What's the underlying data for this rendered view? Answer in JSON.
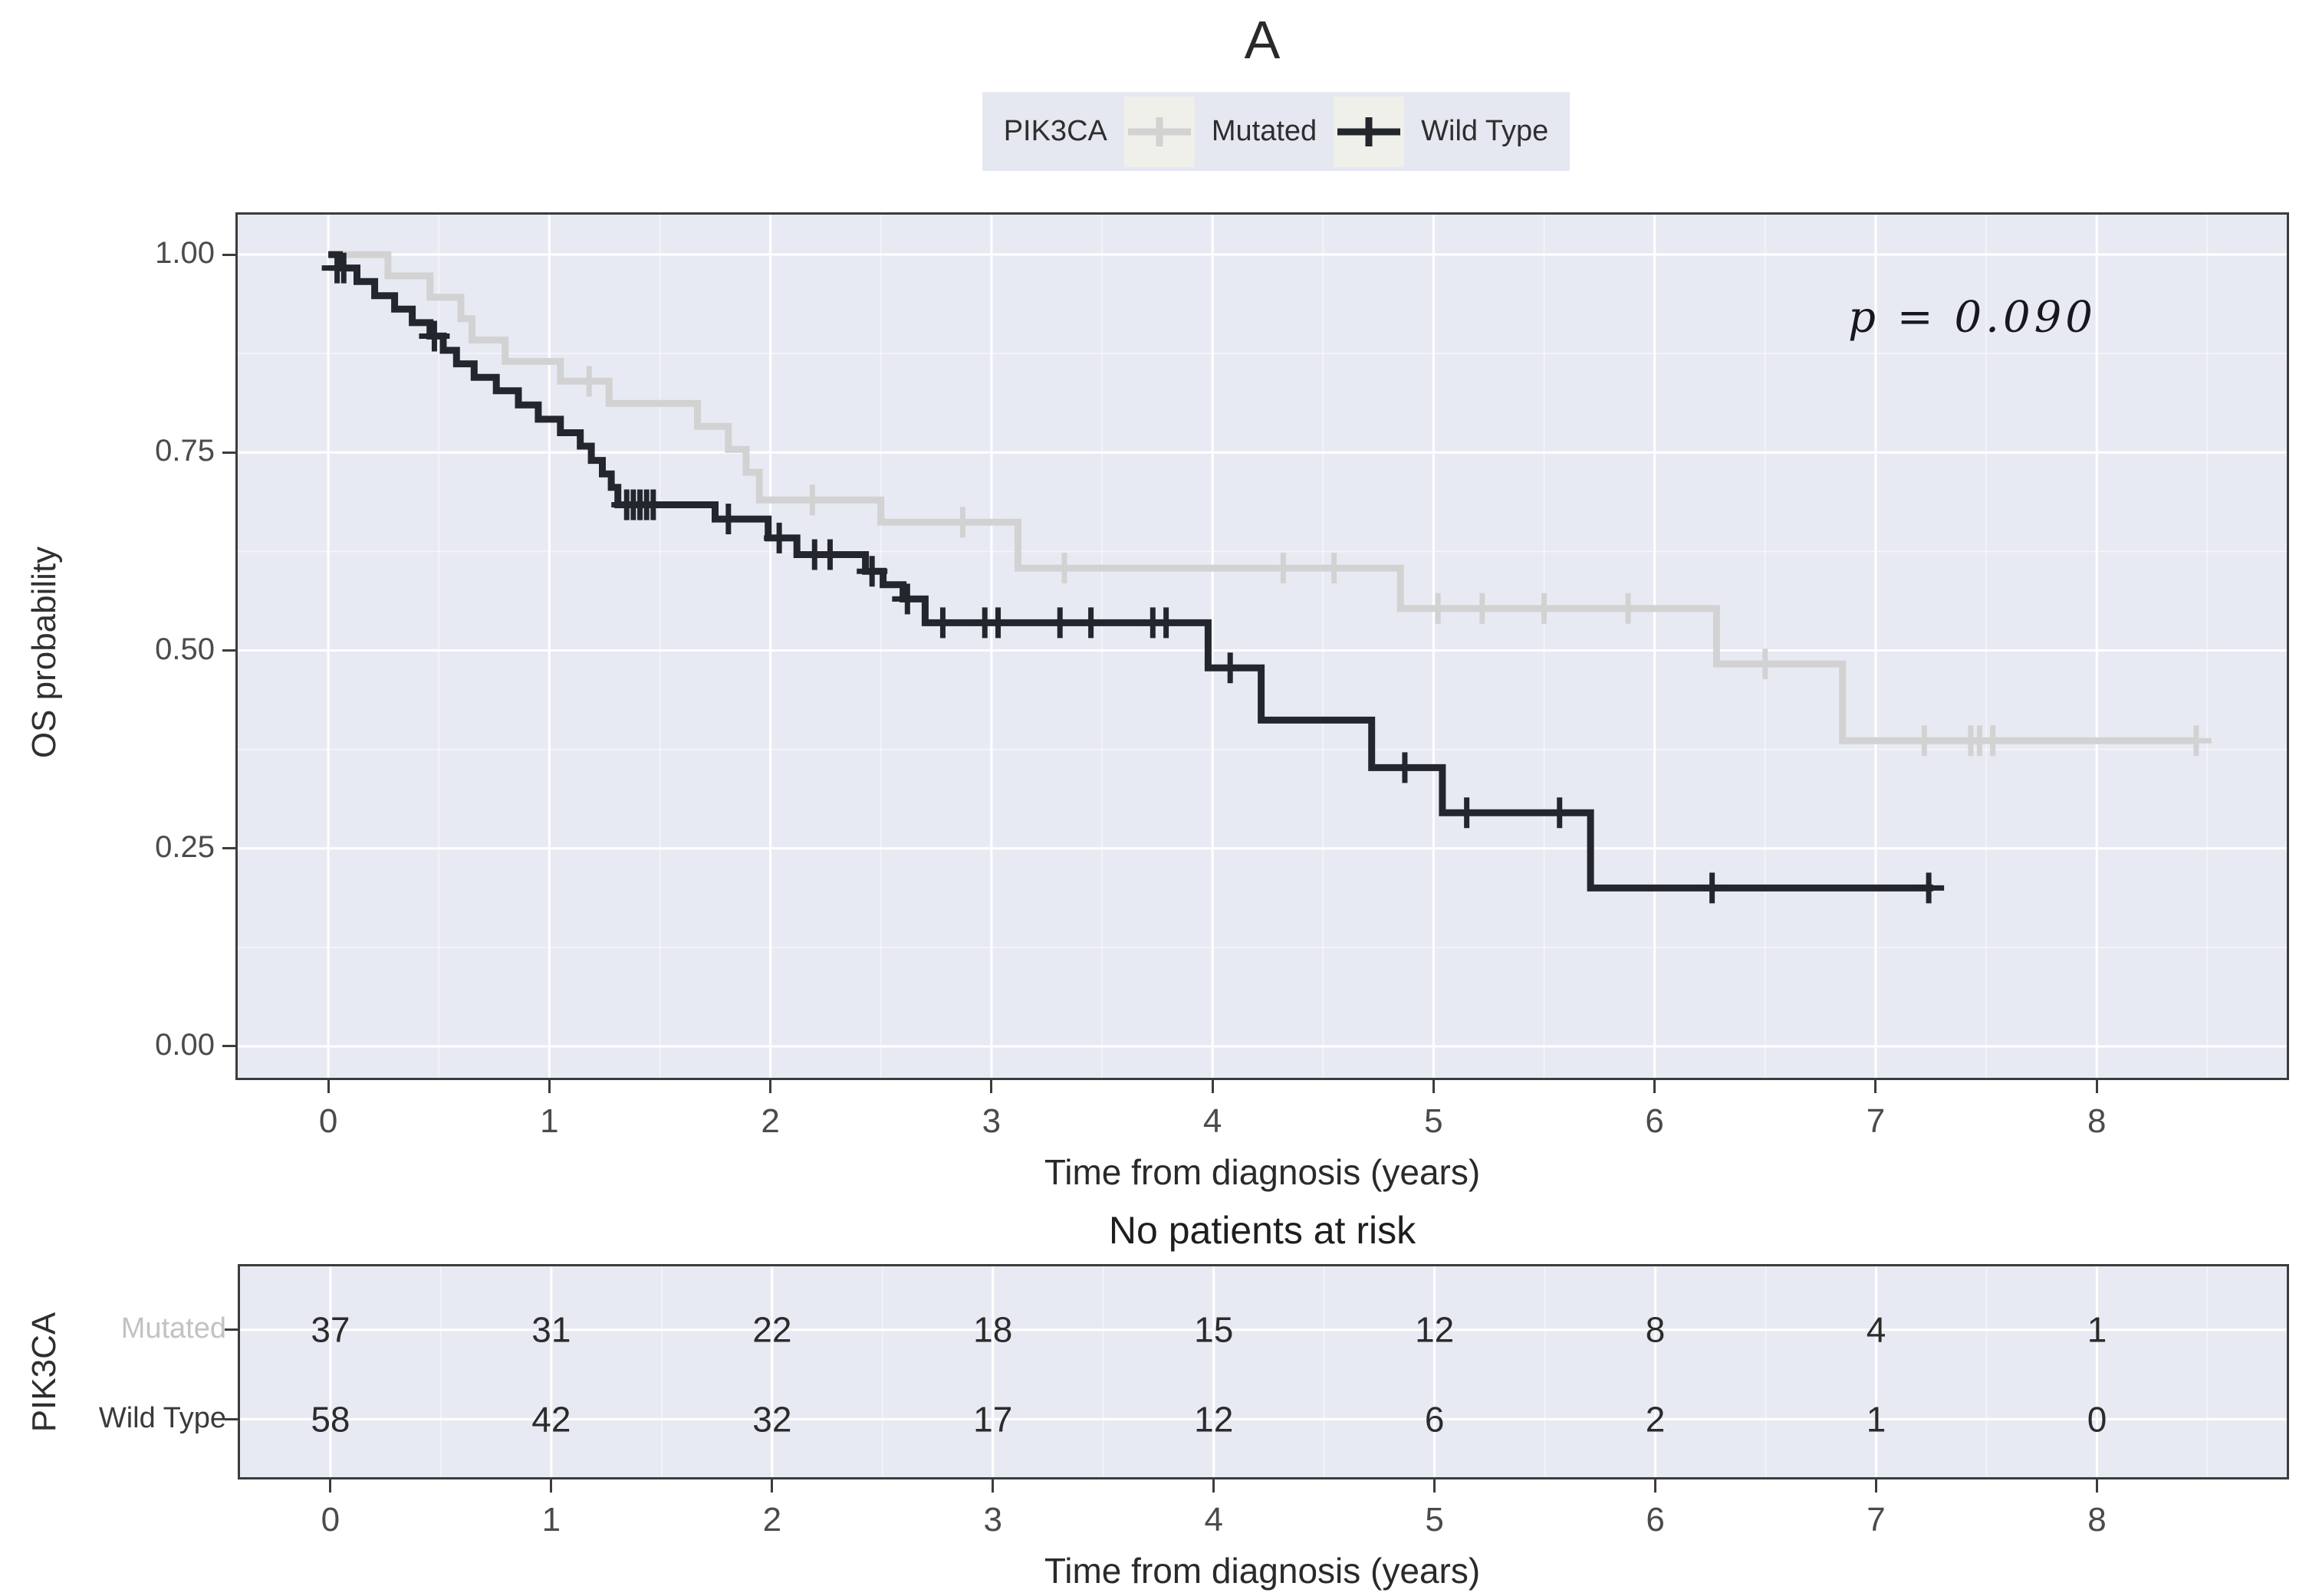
{
  "chart_data": {
    "type": "line",
    "subtype": "kaplan-meier-step",
    "title": "A",
    "p_value_label": "p = 0.090",
    "xlabel": "Time from diagnosis (years)",
    "ylabel": "OS probability",
    "legend_title": "PIK3CA",
    "xlim": [
      -0.42,
      8.87
    ],
    "ylim": [
      -0.0426,
      1.0533
    ],
    "grid": "on",
    "legend_position": "top",
    "x_ticks": [
      {
        "t": 0,
        "label": "0"
      },
      {
        "t": 1,
        "label": "1"
      },
      {
        "t": 2,
        "label": "2"
      },
      {
        "t": 3,
        "label": "3"
      },
      {
        "t": 4,
        "label": "4"
      },
      {
        "t": 5,
        "label": "5"
      },
      {
        "t": 6,
        "label": "6"
      },
      {
        "t": 7,
        "label": "7"
      },
      {
        "t": 8,
        "label": "8"
      }
    ],
    "y_ticks": [
      {
        "p": 1.0,
        "label": "1.00"
      },
      {
        "p": 0.75,
        "label": "0.75"
      },
      {
        "p": 0.5,
        "label": "0.50"
      },
      {
        "p": 0.25,
        "label": "0.25"
      },
      {
        "p": 0.0,
        "label": "0.00"
      }
    ],
    "series": [
      {
        "name": "Mutated",
        "color": "#d2d2d3",
        "steps": [
          [
            0,
            1.0
          ],
          [
            0.27,
            0.973
          ],
          [
            0.46,
            0.946
          ],
          [
            0.6,
            0.919
          ],
          [
            0.65,
            0.892
          ],
          [
            0.8,
            0.865
          ],
          [
            1.05,
            0.84
          ],
          [
            1.27,
            0.812
          ],
          [
            1.67,
            0.783
          ],
          [
            1.81,
            0.754
          ],
          [
            1.89,
            0.725
          ],
          [
            1.95,
            0.69
          ],
          [
            2.5,
            0.662
          ],
          [
            3.12,
            0.604
          ],
          [
            4.85,
            0.553
          ],
          [
            6.28,
            0.483
          ],
          [
            6.85,
            0.386
          ]
        ],
        "end_time": 8.45,
        "censors": [
          [
            1.18,
            0.84
          ],
          [
            2.19,
            0.69
          ],
          [
            2.87,
            0.662
          ],
          [
            3.33,
            0.604
          ],
          [
            4.32,
            0.604
          ],
          [
            4.55,
            0.604
          ],
          [
            5.02,
            0.553
          ],
          [
            5.22,
            0.553
          ],
          [
            5.5,
            0.553
          ],
          [
            5.88,
            0.553
          ],
          [
            6.5,
            0.483
          ],
          [
            7.22,
            0.386
          ],
          [
            7.43,
            0.386
          ],
          [
            7.47,
            0.386
          ],
          [
            7.53,
            0.386
          ],
          [
            8.45,
            0.386
          ]
        ]
      },
      {
        "name": "Wild Type",
        "color": "#23262d",
        "steps": [
          [
            0,
            1.0
          ],
          [
            0.05,
            0.983
          ],
          [
            0.13,
            0.966
          ],
          [
            0.21,
            0.948
          ],
          [
            0.3,
            0.931
          ],
          [
            0.38,
            0.914
          ],
          [
            0.46,
            0.897
          ],
          [
            0.52,
            0.879
          ],
          [
            0.58,
            0.862
          ],
          [
            0.66,
            0.845
          ],
          [
            0.76,
            0.828
          ],
          [
            0.86,
            0.81
          ],
          [
            0.95,
            0.792
          ],
          [
            1.05,
            0.775
          ],
          [
            1.14,
            0.758
          ],
          [
            1.19,
            0.74
          ],
          [
            1.24,
            0.723
          ],
          [
            1.28,
            0.706
          ],
          [
            1.31,
            0.684
          ],
          [
            1.75,
            0.666
          ],
          [
            1.99,
            0.642
          ],
          [
            2.12,
            0.621
          ],
          [
            2.43,
            0.6
          ],
          [
            2.51,
            0.583
          ],
          [
            2.6,
            0.565
          ],
          [
            2.7,
            0.535
          ],
          [
            3.98,
            0.478
          ],
          [
            4.22,
            0.412
          ],
          [
            4.72,
            0.352
          ],
          [
            5.04,
            0.295
          ],
          [
            5.71,
            0.2
          ]
        ],
        "end_time": 7.26,
        "censors": [
          [
            0.04,
            0.983
          ],
          [
            0.07,
            0.983
          ],
          [
            0.48,
            0.897
          ],
          [
            1.35,
            0.684
          ],
          [
            1.38,
            0.684
          ],
          [
            1.41,
            0.684
          ],
          [
            1.44,
            0.684
          ],
          [
            1.47,
            0.684
          ],
          [
            1.81,
            0.666
          ],
          [
            2.04,
            0.642
          ],
          [
            2.2,
            0.621
          ],
          [
            2.27,
            0.621
          ],
          [
            2.46,
            0.6
          ],
          [
            2.62,
            0.565
          ],
          [
            2.78,
            0.535
          ],
          [
            2.97,
            0.535
          ],
          [
            3.03,
            0.535
          ],
          [
            3.31,
            0.535
          ],
          [
            3.45,
            0.535
          ],
          [
            3.73,
            0.535
          ],
          [
            3.79,
            0.535
          ],
          [
            4.08,
            0.478
          ],
          [
            4.87,
            0.352
          ],
          [
            5.15,
            0.295
          ],
          [
            5.57,
            0.295
          ],
          [
            6.26,
            0.2
          ],
          [
            7.24,
            0.2
          ]
        ]
      }
    ],
    "risk_table": {
      "title": "No patients at risk",
      "group_label": "PIK3CA",
      "times": [
        0,
        1,
        2,
        3,
        4,
        5,
        6,
        7,
        8
      ],
      "rows": [
        {
          "label": "Mutated",
          "values": [
            37,
            31,
            22,
            18,
            15,
            12,
            8,
            4,
            1
          ]
        },
        {
          "label": "Wild Type",
          "values": [
            58,
            42,
            32,
            17,
            12,
            6,
            2,
            1,
            0
          ]
        }
      ]
    },
    "colors": {
      "panel_bg": "#e8eaf3",
      "grid_major": "#ffffff",
      "grid_minor": "#ffffff",
      "panel_border": "#3c3c3c",
      "mutated_curve": "#d2d2d3",
      "wild_type_curve": "#23262d",
      "axis_text": "#4b4b4b",
      "title_text": "#2a2a2a",
      "risk_number_text": "#2b2b2b",
      "row_label_mutated": "#c2c2c2",
      "row_label_wild_type": "#3a3a3a",
      "legend_bg": "#e5e8f1",
      "legend_key_bg": "#eff0ea"
    }
  }
}
